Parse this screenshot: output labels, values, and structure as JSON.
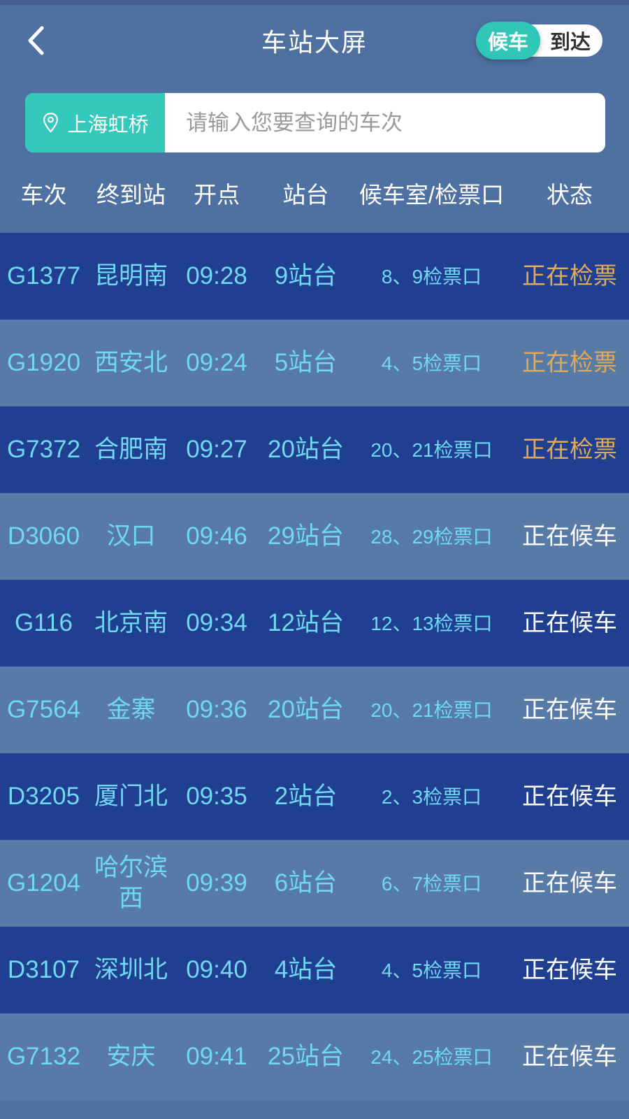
{
  "app": {
    "title": "车站大屏",
    "toggle": {
      "active_label": "候车",
      "inactive_label": "到达"
    }
  },
  "search": {
    "station": "上海虹桥",
    "placeholder": "请输入您要查询的车次"
  },
  "table": {
    "headers": {
      "train": "车次",
      "destination": "终到站",
      "depart_time": "开点",
      "platform": "站台",
      "gate": "候车室/检票口",
      "status": "状态"
    },
    "rows": [
      {
        "train": "G1377",
        "dest": "昆明南",
        "time": "09:28",
        "platform": "9站台",
        "gate": "8、9检票口",
        "status": "正在检票",
        "status_type": "checking"
      },
      {
        "train": "G1920",
        "dest": "西安北",
        "time": "09:24",
        "platform": "5站台",
        "gate": "4、5检票口",
        "status": "正在检票",
        "status_type": "checking"
      },
      {
        "train": "G7372",
        "dest": "合肥南",
        "time": "09:27",
        "platform": "20站台",
        "gate": "20、21检票口",
        "status": "正在检票",
        "status_type": "checking"
      },
      {
        "train": "D3060",
        "dest": "汉口",
        "time": "09:46",
        "platform": "29站台",
        "gate": "28、29检票口",
        "status": "正在候车",
        "status_type": "waiting"
      },
      {
        "train": "G116",
        "dest": "北京南",
        "time": "09:34",
        "platform": "12站台",
        "gate": "12、13检票口",
        "status": "正在候车",
        "status_type": "waiting"
      },
      {
        "train": "G7564",
        "dest": "金寨",
        "time": "09:36",
        "platform": "20站台",
        "gate": "20、21检票口",
        "status": "正在候车",
        "status_type": "waiting"
      },
      {
        "train": "D3205",
        "dest": "厦门北",
        "time": "09:35",
        "platform": "2站台",
        "gate": "2、3检票口",
        "status": "正在候车",
        "status_type": "waiting"
      },
      {
        "train": "G1204",
        "dest": "哈尔滨西",
        "time": "09:39",
        "platform": "6站台",
        "gate": "6、7检票口",
        "status": "正在候车",
        "status_type": "waiting"
      },
      {
        "train": "D3107",
        "dest": "深圳北",
        "time": "09:40",
        "platform": "4站台",
        "gate": "4、5检票口",
        "status": "正在候车",
        "status_type": "waiting"
      },
      {
        "train": "G7132",
        "dest": "安庆",
        "time": "09:41",
        "platform": "25站台",
        "gate": "24、25检票口",
        "status": "正在候车",
        "status_type": "waiting"
      }
    ]
  },
  "colors": {
    "background": "#4f71a2",
    "row_dark": "#213f90",
    "row_light": "#587aa6",
    "accent_teal": "#31c7b8",
    "cell_cyan": "#6fd8f3",
    "status_checking_orange": "#dfa957",
    "status_waiting_white": "#ffffff"
  }
}
